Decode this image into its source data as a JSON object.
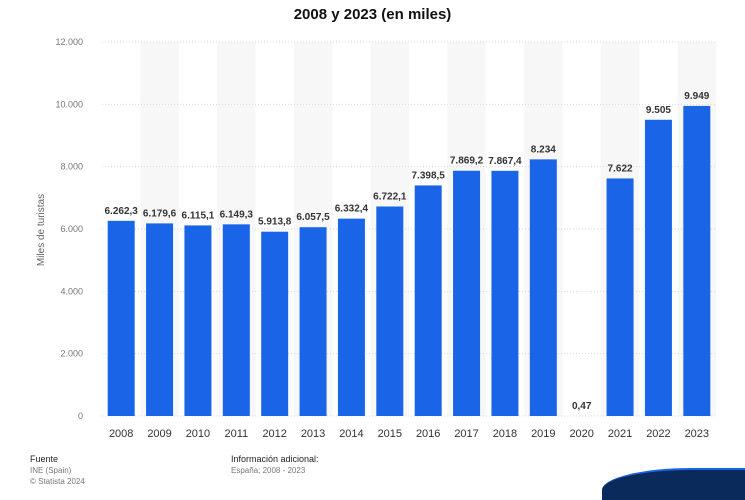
{
  "chart_data": {
    "type": "bar",
    "title": "2008 y 2023 (en miles)",
    "ylabel": "Miles de turistas",
    "xlabel": "",
    "ylim": [
      0,
      12000
    ],
    "yticks": [
      0,
      2000,
      4000,
      6000,
      8000,
      10000,
      12000
    ],
    "ytick_labels": [
      "0",
      "2.000",
      "4.000",
      "6.000",
      "8.000",
      "10.000",
      "12.000"
    ],
    "categories": [
      "2008",
      "2009",
      "2010",
      "2011",
      "2012",
      "2013",
      "2014",
      "2015",
      "2016",
      "2017",
      "2018",
      "2019",
      "2020",
      "2021",
      "2022",
      "2023"
    ],
    "values": [
      6262.3,
      6179.6,
      6115.1,
      6149.3,
      5913.8,
      6057.5,
      6332.4,
      6722.1,
      7398.5,
      7869.2,
      7867.4,
      8234,
      0.47,
      7622,
      9505,
      9949
    ],
    "value_labels": [
      "6.262,3",
      "6.179,6",
      "6.115,1",
      "6.149,3",
      "5.913,8",
      "6.057,5",
      "6.332,4",
      "6.722,1",
      "7.398,5",
      "7.869,2",
      "7.867,4",
      "8.234",
      "0,47",
      "7.622",
      "9.505",
      "9.949"
    ],
    "grid": true,
    "bar_color": "#1a64e8"
  },
  "footer": {
    "source_label": "Fuente",
    "source_value": "INE (Spain)",
    "copyright": "© Statista 2024",
    "info_label": "Información adicional:",
    "info_value": "España; 2008 - 2023"
  }
}
